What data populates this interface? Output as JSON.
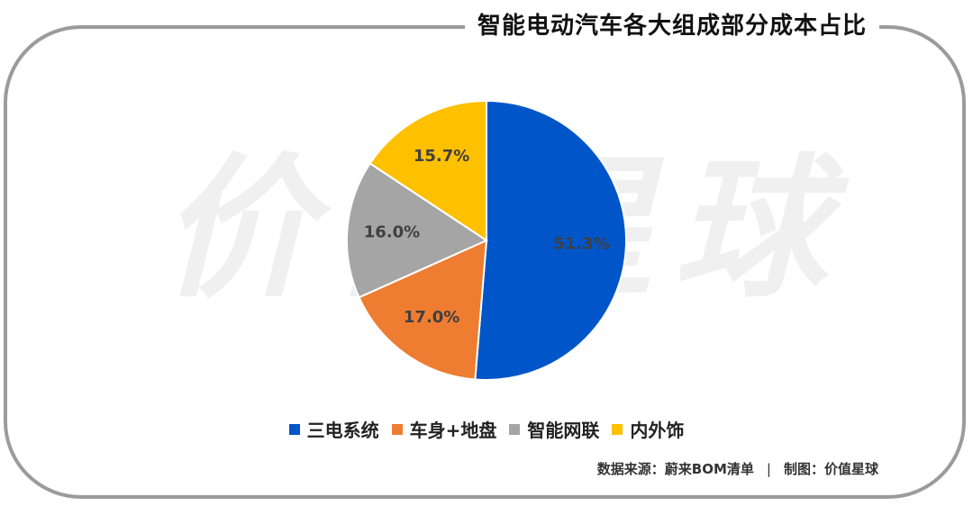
{
  "title": "智能电动汽车各大组成部分成本占比",
  "watermark": "价值星球",
  "footer": {
    "source": "数据来源：蔚来BOM清单",
    "separator": "|",
    "credit": "制图：价值星球"
  },
  "chart_data": {
    "type": "pie",
    "title": "智能电动汽车各大组成部分成本占比",
    "slices": [
      {
        "label": "三电系统",
        "value": 51.3,
        "display": "51.3%",
        "color": "#0055c8"
      },
      {
        "label": "车身+地盘",
        "value": 17.0,
        "display": "17.0%",
        "color": "#ee7d31"
      },
      {
        "label": "智能网联",
        "value": 16.0,
        "display": "16.0%",
        "color": "#a5a5a5"
      },
      {
        "label": "内外饰",
        "value": 15.7,
        "display": "15.7%",
        "color": "#ffc000"
      }
    ],
    "start": "12 o'clock",
    "direction": "clockwise",
    "legend_position": "bottom"
  }
}
